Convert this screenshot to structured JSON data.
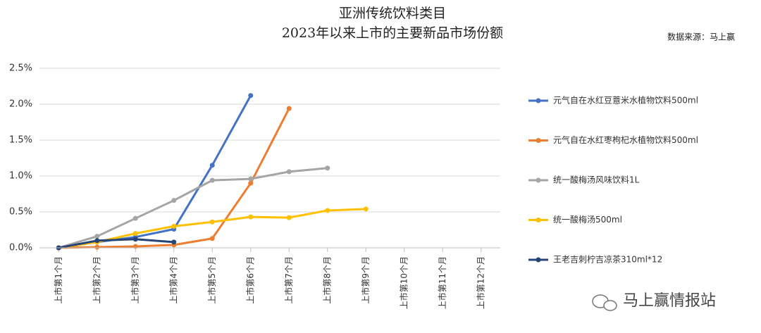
{
  "chart_data": {
    "type": "line",
    "title": "亚洲传统饮料类目",
    "subtitle": "2023年以来上市的主要新品市场份额",
    "source": "数据来源：马上赢",
    "watermark": "马上赢情报站",
    "categories": [
      "上市第1个月",
      "上市第2个月",
      "上市第3个月",
      "上市第4个月",
      "上市第5个月",
      "上市第6个月",
      "上市第7个月",
      "上市第8个月",
      "上市第9个月",
      "上市第10个月",
      "上市第11个月",
      "上市第12个月"
    ],
    "ylim": [
      0,
      2.5
    ],
    "yticks": [
      {
        "value": 0,
        "label": "0.0%"
      },
      {
        "value": 0.5,
        "label": "0.5%"
      },
      {
        "value": 1,
        "label": "1.0%"
      },
      {
        "value": 1.5,
        "label": "1.5%"
      },
      {
        "value": 2,
        "label": "2.0%"
      },
      {
        "value": 2.5,
        "label": "2.5%"
      }
    ],
    "grid": true,
    "legend": "right",
    "series": [
      {
        "name": "元气自在水红豆薏米水植物饮料500ml",
        "color": "#4472c4",
        "values": [
          0,
          0.08,
          0.15,
          0.26,
          1.15,
          2.12,
          null,
          null,
          null,
          null,
          null,
          null
        ]
      },
      {
        "name": "元气自在水红枣枸杞水植物饮料500ml",
        "color": "#ed7d31",
        "values": [
          0,
          0.01,
          0.02,
          0.04,
          0.13,
          0.9,
          1.94,
          null,
          null,
          null,
          null,
          null
        ]
      },
      {
        "name": "统一酸梅汤风味饮料1L",
        "color": "#a5a5a5",
        "values": [
          0,
          0.16,
          0.41,
          0.66,
          0.94,
          0.96,
          1.06,
          1.11,
          null,
          null,
          null,
          null
        ]
      },
      {
        "name": "统一酸梅汤500ml",
        "color": "#ffc000",
        "values": [
          0,
          0.08,
          0.2,
          0.3,
          0.36,
          0.43,
          0.42,
          0.52,
          0.54,
          null,
          null,
          null
        ]
      },
      {
        "name": "王老吉刺柠吉凉茶310ml*12",
        "color": "#264478",
        "values": [
          0,
          0.1,
          0.12,
          0.08,
          null,
          null,
          null,
          null,
          null,
          null,
          null,
          null
        ]
      }
    ]
  }
}
